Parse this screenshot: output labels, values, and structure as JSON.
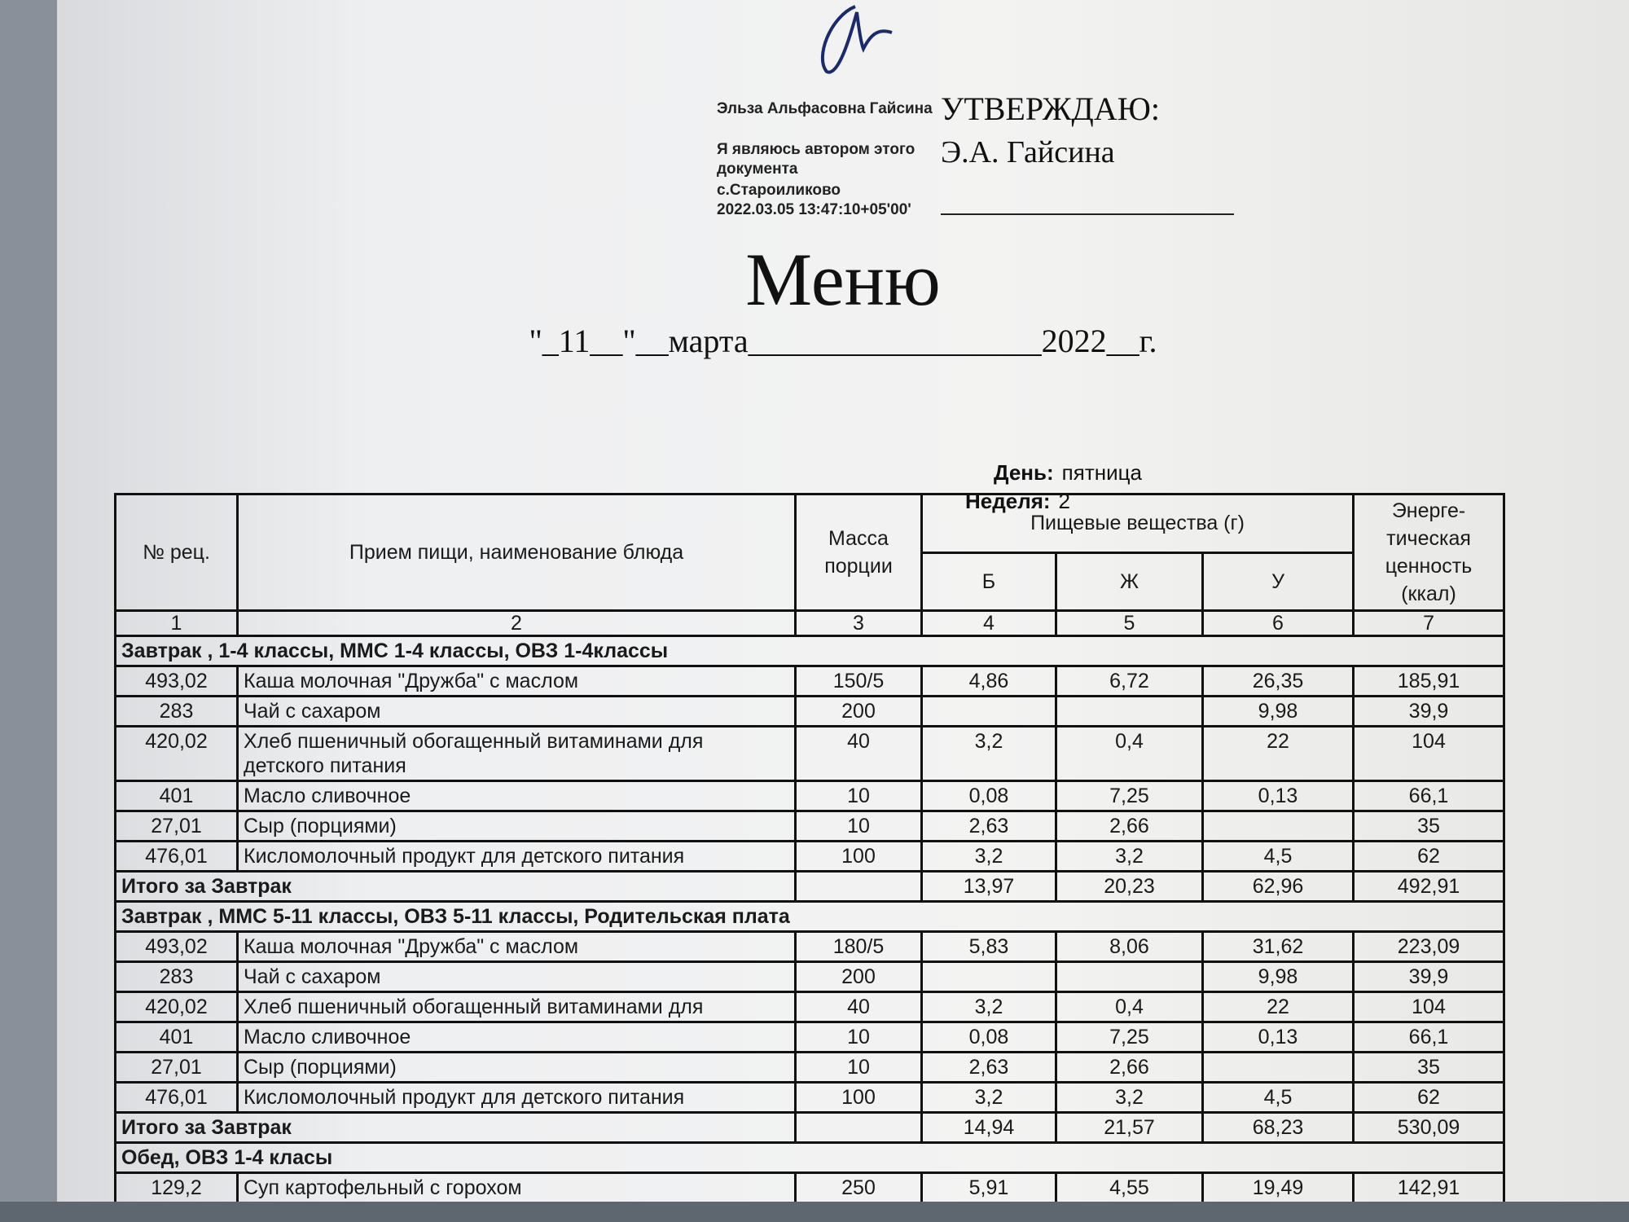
{
  "signature": {
    "name": "Эльза Альфасовна Гайсина",
    "statement": "Я являюсь автором этого документа",
    "place": "с.Староиликово",
    "timestamp": "2022.03.05 13:47:10+05'00'"
  },
  "approval": {
    "label": "УТВЕРЖДАЮ:",
    "name": "Э.А. Гайсина"
  },
  "title": "Меню",
  "date_line": "\"_11__\"__марта__________________2022__г.",
  "day": {
    "label": "День:",
    "value": "пятница"
  },
  "week": {
    "label": "Неделя:",
    "value": "2"
  },
  "table": {
    "header": {
      "number": "№ рец.",
      "dish": "Прием пищи, наименование блюда",
      "mass": "Масса порции",
      "nutrients": "Пищевые вещества (г)",
      "protein": "Б",
      "fat": "Ж",
      "carbs": "У",
      "energy": "Энерге-тическая ценность (ккал)"
    },
    "column_numbers": [
      "1",
      "2",
      "3",
      "4",
      "5",
      "6",
      "7"
    ],
    "sections": [
      {
        "title": "Завтрак , 1-4 классы, ММС 1-4 классы, ОВЗ 1-4классы",
        "items": [
          [
            "493,02",
            "Каша молочная \"Дружба\" с маслом",
            "150/5",
            "4,86",
            "6,72",
            "26,35",
            "185,91"
          ],
          [
            "283",
            "Чай с сахаром",
            "200",
            null,
            null,
            "9,98",
            "39,9"
          ],
          [
            "420,02",
            "Хлеб пшеничный обогащенный витаминами для детского питания",
            "40",
            "3,2",
            "0,4",
            "22",
            "104"
          ],
          [
            "401",
            "Масло сливочное",
            "10",
            "0,08",
            "7,25",
            "0,13",
            "66,1"
          ],
          [
            "27,01",
            "Сыр (порциями)",
            "10",
            "2,63",
            "2,66",
            null,
            "35"
          ],
          [
            "476,01",
            "Кисломолочный продукт для детского питания",
            "100",
            "3,2",
            "3,2",
            "4,5",
            "62"
          ]
        ],
        "total": {
          "label": "Итого за Завтрак",
          "values": [
            "13,97",
            "20,23",
            "62,96",
            "492,91"
          ]
        }
      },
      {
        "title": "Завтрак , ММС 5-11 классы, ОВЗ 5-11 классы, Родительская плата",
        "items": [
          [
            "493,02",
            "Каша молочная \"Дружба\" с маслом",
            "180/5",
            "5,83",
            "8,06",
            "31,62",
            "223,09"
          ],
          [
            "283",
            "Чай с сахаром",
            "200",
            null,
            null,
            "9,98",
            "39,9"
          ],
          [
            "420,02",
            "Хлеб пшеничный обогащенный витаминами для",
            "40",
            "3,2",
            "0,4",
            "22",
            "104"
          ],
          [
            "401",
            "Масло сливочное",
            "10",
            "0,08",
            "7,25",
            "0,13",
            "66,1"
          ],
          [
            "27,01",
            "Сыр (порциями)",
            "10",
            "2,63",
            "2,66",
            null,
            "35"
          ],
          [
            "476,01",
            "Кисломолочный продукт для детского питания",
            "100",
            "3,2",
            "3,2",
            "4,5",
            "62"
          ]
        ],
        "total": {
          "label": "Итого за Завтрак",
          "values": [
            "14,94",
            "21,57",
            "68,23",
            "530,09"
          ]
        }
      },
      {
        "title": "Обед, ОВЗ 1-4 класы",
        "items": [
          [
            "129,2",
            "Суп картофельный с горохом",
            "250",
            "5,91",
            "4,55",
            "19,49",
            "142,91"
          ]
        ]
      }
    ]
  }
}
